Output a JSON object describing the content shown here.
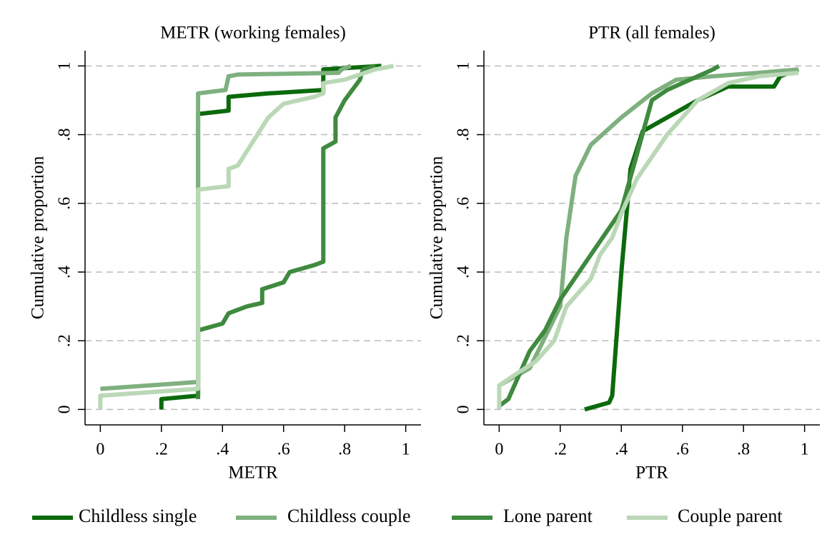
{
  "chart_data": [
    {
      "type": "line",
      "title": "METR (working females)",
      "x_label": "METR",
      "y_label": "Cumulative proportion",
      "xlim": [
        -0.05,
        1.05
      ],
      "ylim": [
        -0.045,
        1.045
      ],
      "xticks": [
        0,
        {
          "value": 0.2,
          "label": ".2"
        },
        {
          "value": 0.4,
          "label": ".4"
        },
        {
          "value": 0.6,
          "label": ".6"
        },
        {
          "value": 0.8,
          "label": ".8"
        },
        1
      ],
      "yticks": [
        0,
        {
          "value": 0.2,
          "label": ".2"
        },
        {
          "value": 0.4,
          "label": ".4"
        },
        {
          "value": 0.6,
          "label": ".6"
        },
        {
          "value": 0.8,
          "label": ".8"
        },
        1
      ],
      "grid": true,
      "legend": "bottom",
      "series": [
        {
          "name": "Childless single",
          "color": "#0b6a0b",
          "x": [
            0.2,
            0.2,
            0.32,
            0.32,
            0.42,
            0.42,
            0.55,
            0.73,
            0.73,
            0.92
          ],
          "values": [
            0,
            0.03,
            0.04,
            0.86,
            0.87,
            0.91,
            0.92,
            0.93,
            0.99,
            1.0
          ]
        },
        {
          "name": "Childless couple",
          "color": "#7fb07f",
          "x": [
            0,
            0.32,
            0.32,
            0.32,
            0.41,
            0.42,
            0.45,
            0.78,
            0.79,
            0.82
          ],
          "values": [
            0.06,
            0.08,
            0.65,
            0.92,
            0.93,
            0.97,
            0.975,
            0.98,
            0.99,
            1.0
          ]
        },
        {
          "name": "Lone parent",
          "color": "#3f8a3f",
          "x": [
            0.32,
            0.32,
            0.4,
            0.42,
            0.48,
            0.53,
            0.53,
            0.6,
            0.62,
            0.7,
            0.73,
            0.73,
            0.77,
            0.77,
            0.8,
            0.85,
            0.86,
            0.9
          ],
          "values": [
            0.03,
            0.23,
            0.25,
            0.28,
            0.3,
            0.31,
            0.35,
            0.37,
            0.4,
            0.42,
            0.43,
            0.76,
            0.78,
            0.85,
            0.9,
            0.96,
            0.99,
            1.0
          ]
        },
        {
          "name": "Couple parent",
          "color": "#bad8b6",
          "x": [
            0,
            0,
            0.32,
            0.32,
            0.42,
            0.42,
            0.45,
            0.5,
            0.55,
            0.6,
            0.7,
            0.73,
            0.73,
            0.8,
            0.9,
            0.96
          ],
          "values": [
            0,
            0.04,
            0.06,
            0.64,
            0.65,
            0.7,
            0.71,
            0.78,
            0.85,
            0.89,
            0.91,
            0.92,
            0.95,
            0.96,
            0.99,
            1.0
          ]
        }
      ]
    },
    {
      "type": "line",
      "title": "PTR (all females)",
      "x_label": "PTR",
      "y_label": "Cumulative proportion",
      "xlim": [
        -0.05,
        1.05
      ],
      "ylim": [
        -0.045,
        1.045
      ],
      "xticks": [
        0,
        {
          "value": 0.2,
          "label": ".2"
        },
        {
          "value": 0.4,
          "label": ".4"
        },
        {
          "value": 0.6,
          "label": ".6"
        },
        {
          "value": 0.8,
          "label": ".8"
        },
        1
      ],
      "yticks": [
        0,
        {
          "value": 0.2,
          "label": ".2"
        },
        {
          "value": 0.4,
          "label": ".4"
        },
        {
          "value": 0.6,
          "label": ".6"
        },
        {
          "value": 0.8,
          "label": ".8"
        },
        1
      ],
      "grid": true,
      "series": [
        {
          "color": "#0b6a0b",
          "x": [
            0.28,
            0.36,
            0.37,
            0.4,
            0.43,
            0.47,
            0.55,
            0.65,
            0.75,
            0.8,
            0.9,
            0.92,
            0.98
          ],
          "values": [
            0,
            0.02,
            0.04,
            0.4,
            0.7,
            0.81,
            0.85,
            0.9,
            0.94,
            0.94,
            0.94,
            0.97,
            0.99
          ]
        },
        {
          "color": "#7fb07f",
          "x": [
            0,
            0.1,
            0.2,
            0.22,
            0.25,
            0.3,
            0.4,
            0.5,
            0.58,
            0.7,
            0.85,
            0.98
          ],
          "values": [
            0.07,
            0.12,
            0.3,
            0.5,
            0.68,
            0.77,
            0.85,
            0.92,
            0.96,
            0.97,
            0.98,
            0.99
          ]
        },
        {
          "color": "#3f8a3f",
          "x": [
            0,
            0.03,
            0.1,
            0.15,
            0.2,
            0.3,
            0.4,
            0.5,
            0.55,
            0.6,
            0.65,
            0.7,
            0.72
          ],
          "values": [
            0.01,
            0.03,
            0.17,
            0.23,
            0.32,
            0.45,
            0.58,
            0.9,
            0.93,
            0.95,
            0.97,
            0.99,
            1.0
          ]
        },
        {
          "color": "#bad8b6",
          "x": [
            0,
            0,
            0.05,
            0.12,
            0.18,
            0.22,
            0.3,
            0.33,
            0.37,
            0.4,
            0.45,
            0.55,
            0.65,
            0.75,
            0.85,
            0.98
          ],
          "values": [
            0,
            0.07,
            0.1,
            0.14,
            0.2,
            0.3,
            0.38,
            0.45,
            0.5,
            0.57,
            0.67,
            0.8,
            0.9,
            0.95,
            0.97,
            0.98
          ]
        }
      ]
    }
  ]
}
